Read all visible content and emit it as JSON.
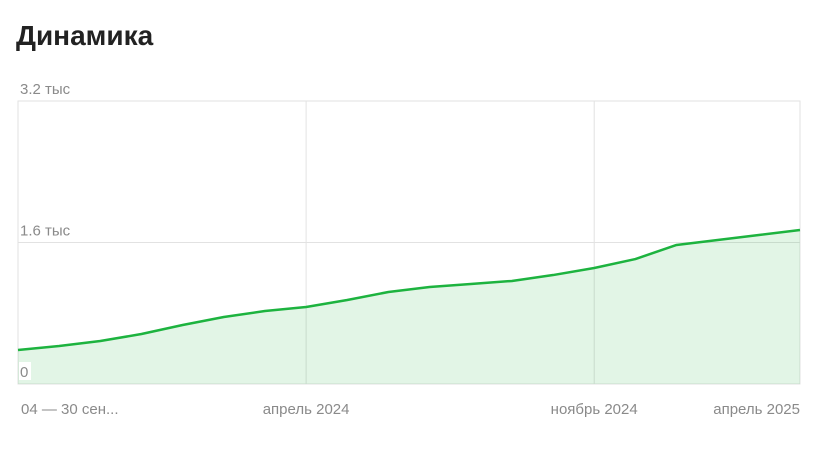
{
  "chart_data": {
    "type": "line",
    "title": "Динамика",
    "categories": [
      "04 — 30 сен...",
      null,
      null,
      null,
      null,
      null,
      null,
      "апрель 2024",
      null,
      null,
      null,
      null,
      null,
      null,
      "ноябрь 2024",
      null,
      null,
      null,
      null,
      "апрель 2025"
    ],
    "series": [
      {
        "color": "#1db33f",
        "values": [
          385,
          430,
          486,
          565,
          667,
          758,
          825,
          871,
          950,
          1040,
          1097,
          1131,
          1165,
          1232,
          1312,
          1413,
          1572,
          1628,
          1685,
          1741
        ]
      }
    ],
    "ylim": [
      0,
      3200
    ],
    "yticks": [
      0,
      {
        "value": 1600,
        "label": "1.6 тыс"
      },
      {
        "value": 3200,
        "label": "3.2 тыс"
      }
    ],
    "grid": true
  }
}
